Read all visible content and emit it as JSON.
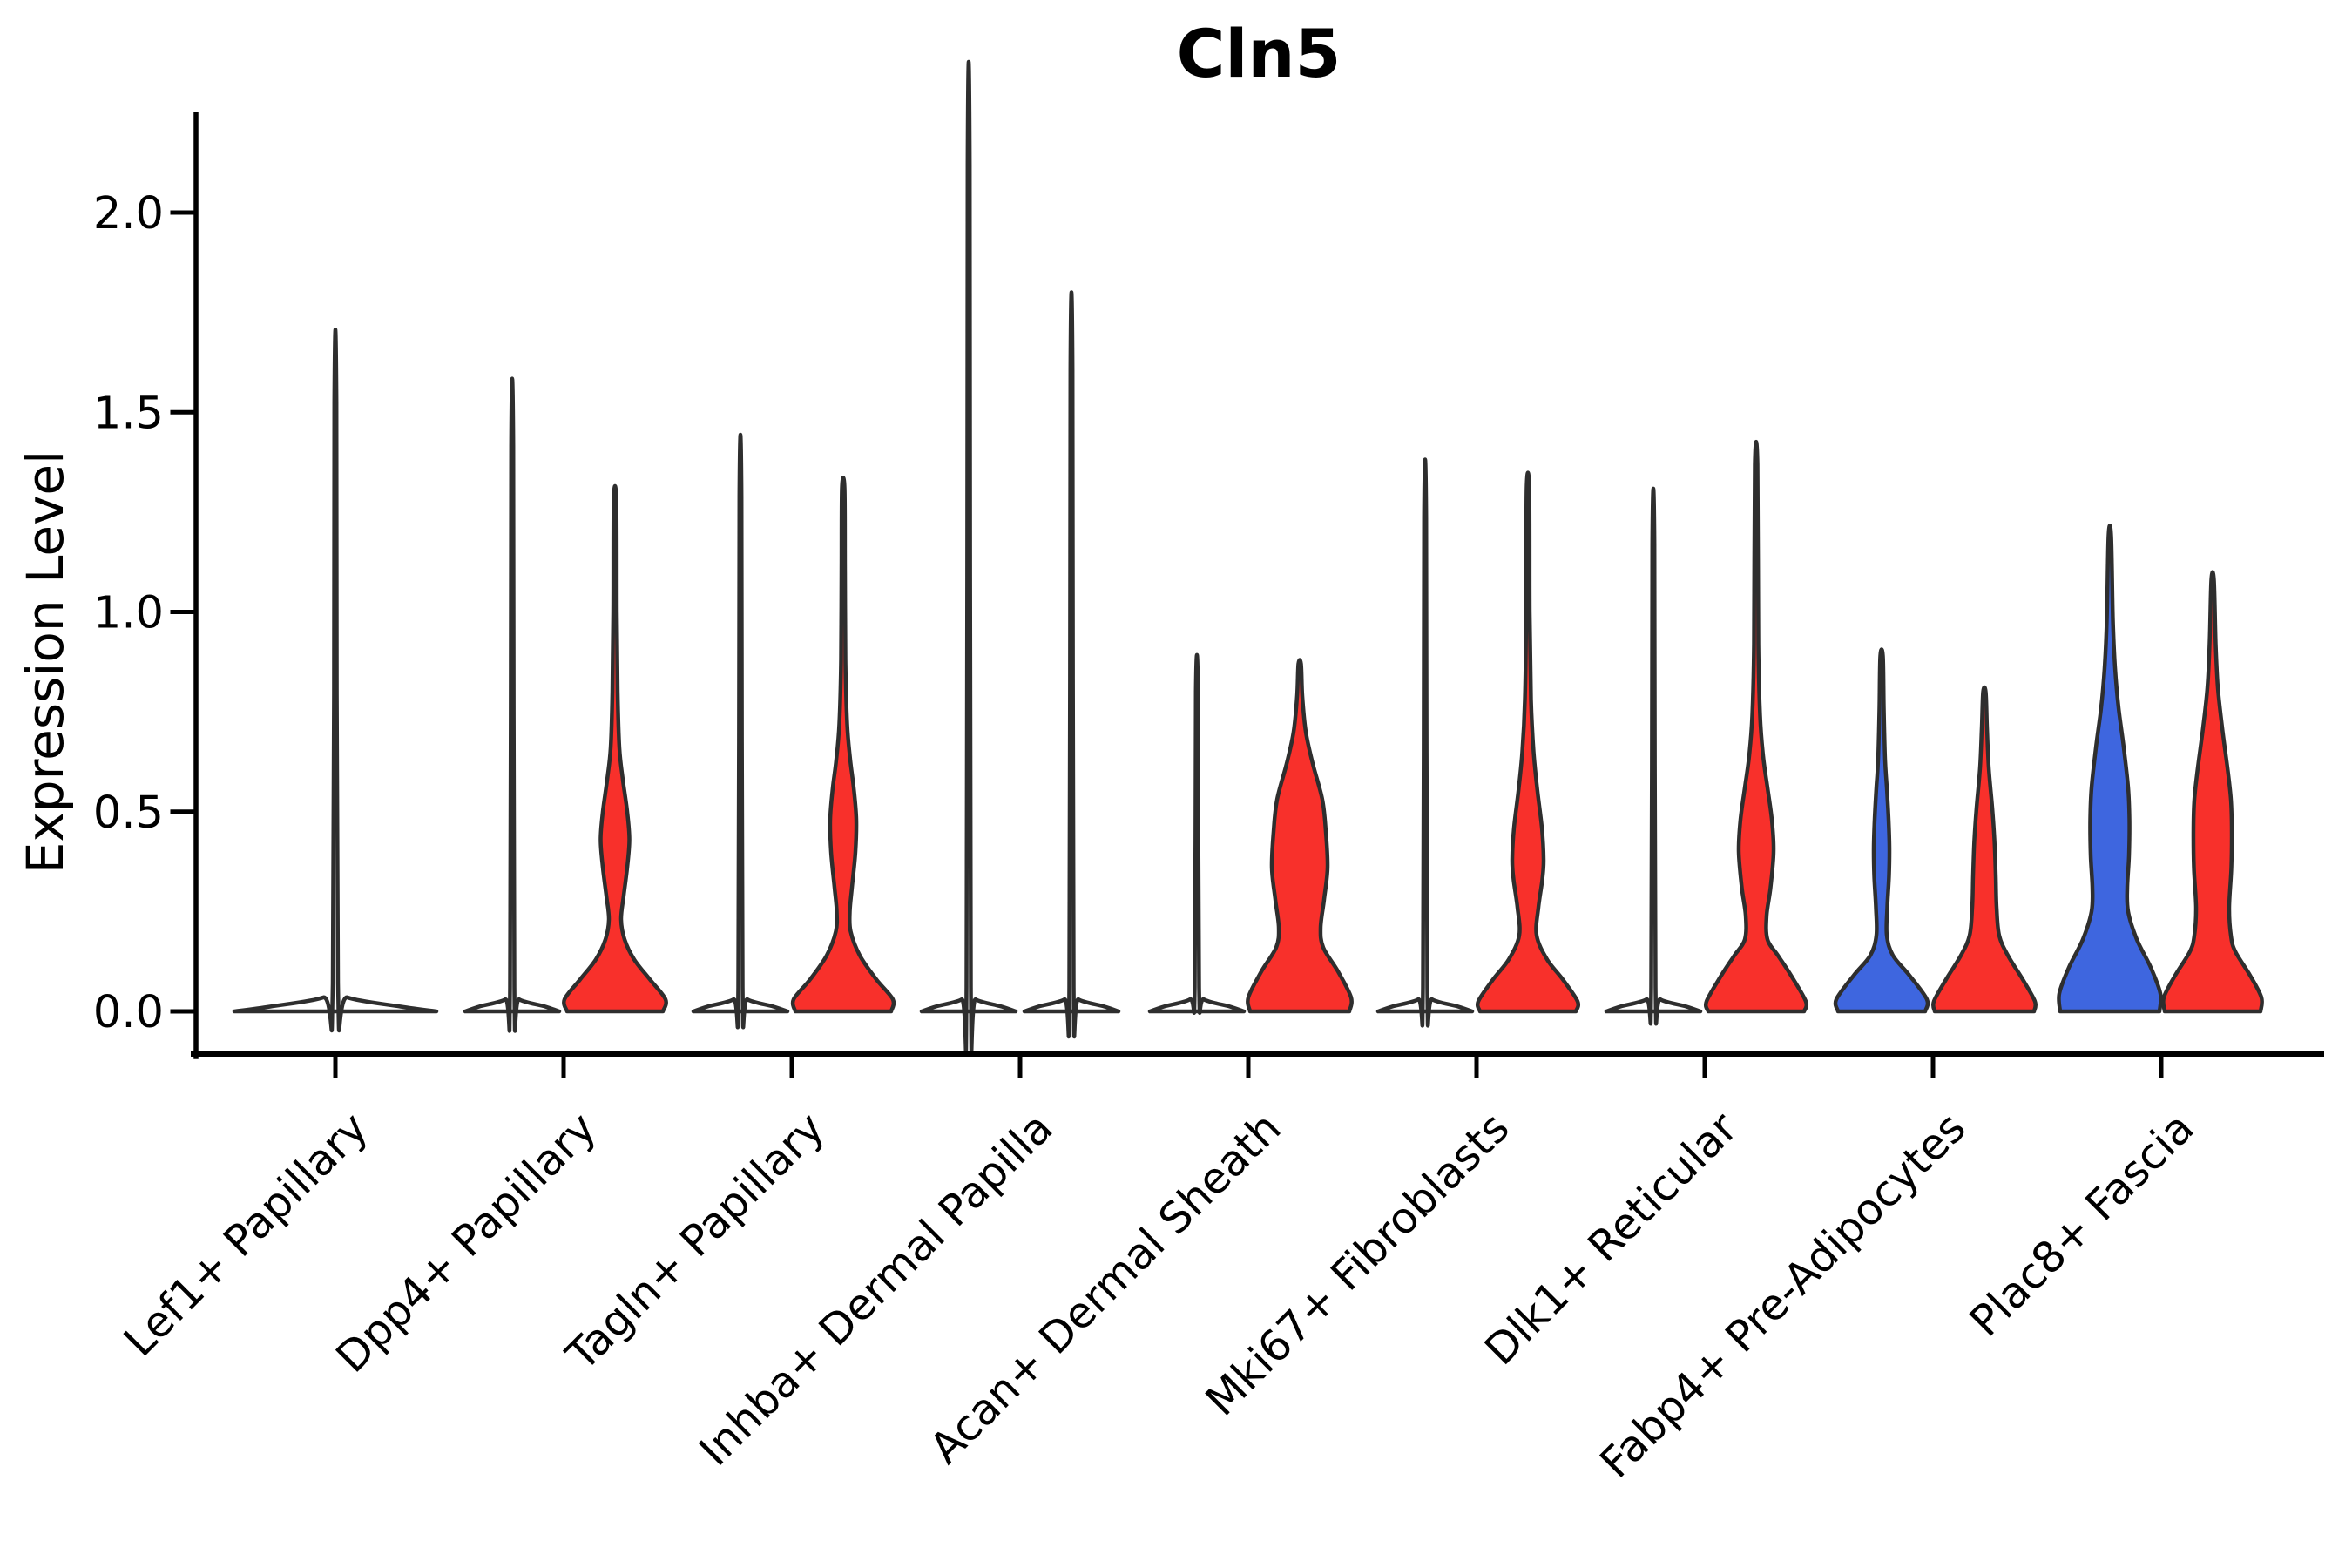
{
  "title": "Cln5",
  "y_axis": {
    "label": "Expression Level",
    "tick_labels": [
      "0.0",
      "0.5",
      "1.0",
      "1.5",
      "2.0"
    ],
    "tick_values": [
      0.0,
      0.5,
      1.0,
      1.5,
      2.0
    ]
  },
  "colors": {
    "red": "#F8302B",
    "blue": "#3E66DF",
    "flat": "#FFFFFF",
    "stroke": "#2E2E2E",
    "background": "#FFFFFF"
  },
  "chart_data": {
    "type": "violin",
    "title": "Cln5",
    "xlabel": "",
    "ylabel": "Expression Level",
    "ylim": [
      -0.11,
      2.24
    ],
    "grid": false,
    "legend": "none",
    "categories": [
      "Lef1+ Papillary",
      "Dpp4+ Papillary",
      "Tagln+ Papillary",
      "Inhba+ Dermal Papilla",
      "Acan+ Dermal Sheath",
      "Mki67+ Fibroblasts",
      "Dlk1+ Reticular",
      "Fabp4+ Pre-Adipocytes",
      "Plac8+ Fascia"
    ],
    "violins": [
      {
        "category_index": 0,
        "side": "center",
        "fill": "flat",
        "max": 1.52,
        "profile": [
          [
            0,
            116
          ],
          [
            0.012,
            75
          ],
          [
            0.035,
            14
          ],
          [
            0.07,
            3
          ],
          [
            1.525,
            1.2
          ]
        ]
      },
      {
        "category_index": 1,
        "side": "left",
        "fill": "flat",
        "max": 1.41,
        "profile": [
          [
            0,
            54
          ],
          [
            0.012,
            38
          ],
          [
            0.03,
            8
          ],
          [
            0.06,
            2.5
          ],
          [
            1.415,
            1.2
          ]
        ]
      },
      {
        "category_index": 1,
        "side": "right",
        "fill": "red",
        "max": 1.28,
        "profile": [
          [
            0,
            55
          ],
          [
            0.03,
            58
          ],
          [
            0.08,
            40
          ],
          [
            0.13,
            22
          ],
          [
            0.18,
            11
          ],
          [
            0.23,
            7
          ],
          [
            0.29,
            10
          ],
          [
            0.36,
            14
          ],
          [
            0.43,
            16.5
          ],
          [
            0.5,
            14
          ],
          [
            0.58,
            9
          ],
          [
            0.66,
            5
          ],
          [
            0.8,
            3
          ],
          [
            1.0,
            2
          ],
          [
            1.28,
            1.5
          ]
        ]
      },
      {
        "category_index": 2,
        "side": "left",
        "fill": "flat",
        "max": 1.29,
        "profile": [
          [
            0,
            54
          ],
          [
            0.012,
            38
          ],
          [
            0.03,
            8
          ],
          [
            0.06,
            2.5
          ],
          [
            1.29,
            1.2
          ]
        ]
      },
      {
        "category_index": 2,
        "side": "right",
        "fill": "red",
        "max": 1.31,
        "profile": [
          [
            0,
            55
          ],
          [
            0.03,
            57
          ],
          [
            0.08,
            38
          ],
          [
            0.14,
            19
          ],
          [
            0.2,
            8.5
          ],
          [
            0.25,
            7.5
          ],
          [
            0.31,
            10
          ],
          [
            0.4,
            14
          ],
          [
            0.48,
            15
          ],
          [
            0.56,
            12
          ],
          [
            0.63,
            8
          ],
          [
            0.72,
            4.5
          ],
          [
            0.88,
            2.5
          ],
          [
            1.1,
            2
          ],
          [
            1.31,
            1.5
          ]
        ]
      },
      {
        "category_index": 3,
        "side": "left",
        "fill": "flat",
        "max": 2.12,
        "profile": [
          [
            0,
            54
          ],
          [
            0.012,
            38
          ],
          [
            0.03,
            8
          ],
          [
            0.06,
            2.5
          ],
          [
            2.12,
            1.2
          ]
        ]
      },
      {
        "category_index": 3,
        "side": "right",
        "fill": "flat",
        "max": 1.61,
        "profile": [
          [
            0,
            54
          ],
          [
            0.012,
            38
          ],
          [
            0.03,
            8
          ],
          [
            0.06,
            2.5
          ],
          [
            1.607,
            1.2
          ]
        ]
      },
      {
        "category_index": 4,
        "side": "left",
        "fill": "flat",
        "max": 0.8,
        "profile": [
          [
            0,
            54
          ],
          [
            0.012,
            38
          ],
          [
            0.03,
            8
          ],
          [
            0.06,
            2.5
          ],
          [
            0.8,
            1.2
          ]
        ]
      },
      {
        "category_index": 4,
        "side": "right",
        "fill": "red",
        "max": 0.87,
        "profile": [
          [
            0,
            57
          ],
          [
            0.035,
            59
          ],
          [
            0.1,
            44
          ],
          [
            0.16,
            27
          ],
          [
            0.21,
            24
          ],
          [
            0.28,
            28
          ],
          [
            0.36,
            32
          ],
          [
            0.45,
            30
          ],
          [
            0.53,
            26
          ],
          [
            0.62,
            15
          ],
          [
            0.7,
            7
          ],
          [
            0.79,
            3
          ],
          [
            0.87,
            1.5
          ]
        ]
      },
      {
        "category_index": 5,
        "side": "left",
        "fill": "flat",
        "max": 1.23,
        "profile": [
          [
            0,
            54
          ],
          [
            0.012,
            38
          ],
          [
            0.03,
            8
          ],
          [
            0.06,
            2.5
          ],
          [
            1.235,
            1.2
          ]
        ]
      },
      {
        "category_index": 5,
        "side": "right",
        "fill": "red",
        "max": 1.31,
        "profile": [
          [
            0,
            55
          ],
          [
            0.025,
            57
          ],
          [
            0.08,
            40
          ],
          [
            0.13,
            22
          ],
          [
            0.19,
            10
          ],
          [
            0.26,
            12
          ],
          [
            0.33,
            16.5
          ],
          [
            0.38,
            18
          ],
          [
            0.46,
            16
          ],
          [
            0.55,
            11
          ],
          [
            0.65,
            6.5
          ],
          [
            0.78,
            3.5
          ],
          [
            1.0,
            2
          ],
          [
            1.31,
            1.5
          ]
        ]
      },
      {
        "category_index": 6,
        "side": "left",
        "fill": "flat",
        "max": 1.17,
        "profile": [
          [
            0,
            54
          ],
          [
            0.012,
            38
          ],
          [
            0.03,
            8
          ],
          [
            0.06,
            2.5
          ],
          [
            1.17,
            1.2
          ]
        ]
      },
      {
        "category_index": 6,
        "side": "right",
        "fill": "red",
        "max": 1.37,
        "profile": [
          [
            0,
            55
          ],
          [
            0.025,
            57
          ],
          [
            0.09,
            40
          ],
          [
            0.14,
            25
          ],
          [
            0.18,
            13
          ],
          [
            0.24,
            12
          ],
          [
            0.31,
            16.5
          ],
          [
            0.4,
            20
          ],
          [
            0.48,
            18
          ],
          [
            0.56,
            13
          ],
          [
            0.64,
            8
          ],
          [
            0.74,
            4.5
          ],
          [
            0.92,
            2.5
          ],
          [
            1.37,
            1.5
          ]
        ]
      },
      {
        "category_index": 7,
        "side": "left",
        "fill": "blue",
        "max": 0.89,
        "profile": [
          [
            0,
            50
          ],
          [
            0.03,
            52
          ],
          [
            0.09,
            32
          ],
          [
            0.14,
            13
          ],
          [
            0.19,
            6
          ],
          [
            0.26,
            6.5
          ],
          [
            0.34,
            8.5
          ],
          [
            0.41,
            9
          ],
          [
            0.48,
            8
          ],
          [
            0.56,
            6
          ],
          [
            0.63,
            4
          ],
          [
            0.76,
            2.5
          ],
          [
            0.89,
            1.5
          ]
        ]
      },
      {
        "category_index": 7,
        "side": "right",
        "fill": "red",
        "max": 0.8,
        "profile": [
          [
            0,
            57
          ],
          [
            0.025,
            58
          ],
          [
            0.08,
            44
          ],
          [
            0.14,
            27
          ],
          [
            0.19,
            17
          ],
          [
            0.26,
            14
          ],
          [
            0.34,
            13
          ],
          [
            0.43,
            11.5
          ],
          [
            0.51,
            9
          ],
          [
            0.61,
            5
          ],
          [
            0.71,
            3
          ],
          [
            0.8,
            1.5
          ]
        ]
      },
      {
        "category_index": 8,
        "side": "left",
        "fill": "blue",
        "max": 1.19,
        "profile": [
          [
            0,
            57
          ],
          [
            0.045,
            58
          ],
          [
            0.11,
            47
          ],
          [
            0.18,
            31
          ],
          [
            0.25,
            21
          ],
          [
            0.31,
            20
          ],
          [
            0.39,
            22
          ],
          [
            0.48,
            22.5
          ],
          [
            0.56,
            21
          ],
          [
            0.66,
            16
          ],
          [
            0.76,
            10
          ],
          [
            0.86,
            6
          ],
          [
            0.98,
            3.5
          ],
          [
            1.19,
            1.5
          ]
        ]
      },
      {
        "category_index": 8,
        "side": "right",
        "fill": "red",
        "max": 1.08,
        "profile": [
          [
            0,
            55
          ],
          [
            0.035,
            56
          ],
          [
            0.09,
            43
          ],
          [
            0.15,
            26
          ],
          [
            0.19,
            21
          ],
          [
            0.26,
            19
          ],
          [
            0.36,
            21.5
          ],
          [
            0.46,
            22
          ],
          [
            0.53,
            21
          ],
          [
            0.61,
            17
          ],
          [
            0.71,
            11
          ],
          [
            0.81,
            6
          ],
          [
            0.92,
            3.5
          ],
          [
            1.08,
            1.5
          ]
        ]
      }
    ]
  }
}
